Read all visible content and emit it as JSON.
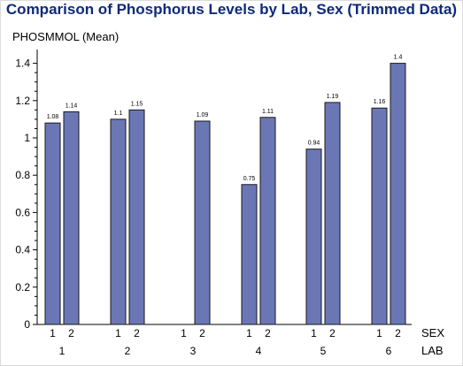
{
  "chart_data": {
    "type": "bar",
    "title": "Comparison of Phosphorus Levels by Lab, Sex (Trimmed Data)",
    "ylabel": "PHOSMMOL (Mean)",
    "ylim": [
      0,
      1.45
    ],
    "yticks": [
      "0",
      "0.2",
      "0.4",
      "0.6",
      "0.8",
      "1",
      "1.2",
      "1.4"
    ],
    "ytick_values": [
      0,
      0.2,
      0.4,
      0.6,
      0.8,
      1.0,
      1.2,
      1.4
    ],
    "group_axis_label": "LAB",
    "subgroup_axis_label": "SEX",
    "groups": [
      {
        "lab": "1",
        "bars": [
          {
            "sex": "1",
            "value": 1.08,
            "label": "1.08"
          },
          {
            "sex": "2",
            "value": 1.14,
            "label": "1.14"
          }
        ]
      },
      {
        "lab": "2",
        "bars": [
          {
            "sex": "1",
            "value": 1.1,
            "label": "1.1"
          },
          {
            "sex": "2",
            "value": 1.15,
            "label": "1.15"
          }
        ]
      },
      {
        "lab": "3",
        "bars": [
          {
            "sex": "1",
            "value": null,
            "label": ""
          },
          {
            "sex": "2",
            "value": 1.09,
            "label": "1.09"
          }
        ]
      },
      {
        "lab": "4",
        "bars": [
          {
            "sex": "1",
            "value": 0.75,
            "label": "0.75"
          },
          {
            "sex": "2",
            "value": 1.11,
            "label": "1.11"
          }
        ]
      },
      {
        "lab": "5",
        "bars": [
          {
            "sex": "1",
            "value": 0.94,
            "label": "0.94"
          },
          {
            "sex": "2",
            "value": 1.19,
            "label": "1.19"
          }
        ]
      },
      {
        "lab": "6",
        "bars": [
          {
            "sex": "1",
            "value": 1.16,
            "label": "1.16"
          },
          {
            "sex": "2",
            "value": 1.4,
            "label": "1.4"
          }
        ]
      }
    ],
    "grid": false,
    "legend": "none",
    "colors": {
      "bar_fill": "#6b77b5",
      "bar_stroke": "#1a1a1a",
      "title": "#0d2a7a",
      "axis": "#000000"
    }
  }
}
